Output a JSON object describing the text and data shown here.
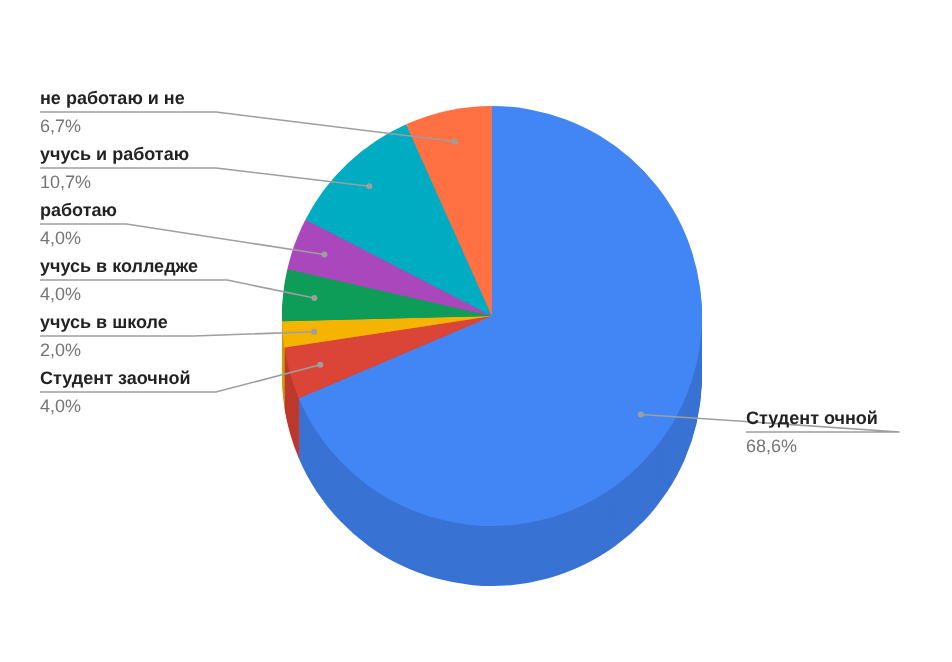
{
  "chart_data": {
    "type": "pie",
    "categories": [
      "Студент очной",
      "Студент заочной",
      "учусь в школе",
      "учусь в колледже",
      "работаю",
      "учусь и работаю",
      "не работаю и не"
    ],
    "values": [
      68.6,
      4.0,
      2.0,
      4.0,
      4.0,
      10.7,
      6.7
    ],
    "value_labels": [
      "68,6%",
      "4,0%",
      "2,0%",
      "4,0%",
      "4,0%",
      "10,7%",
      "6,7%"
    ],
    "colors": [
      "#4285f4",
      "#db4437",
      "#f4b400",
      "#0f9d58",
      "#ab47bc",
      "#00acc1",
      "#ff7043"
    ]
  }
}
